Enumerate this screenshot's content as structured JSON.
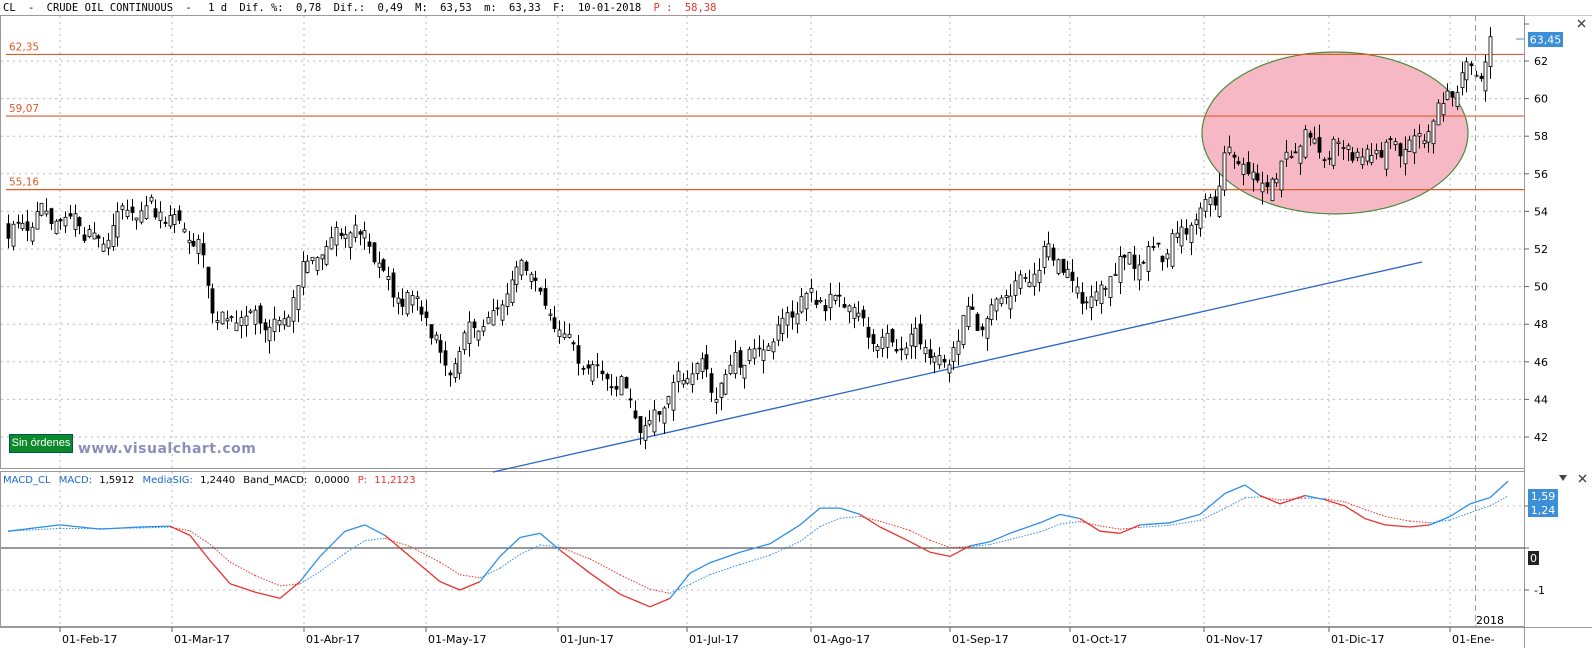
{
  "header": {
    "symbol": "CL",
    "sep": "-",
    "name": "CRUDE OIL CONTINUOUS",
    "sep2": "-",
    "period": "1 d",
    "dif_pct_label": "Dif. %:",
    "dif_pct": "0,78",
    "dif_label": "Dif.:",
    "dif": "0,49",
    "max_label": "M:",
    "max": "63,53",
    "min_label": "m:",
    "min": "63,33",
    "date_label": "F:",
    "date": "10-01-2018",
    "price_label": "P :",
    "price": "58,38"
  },
  "price_panel": {
    "last_price": "63,45",
    "yticks": [
      "62",
      "60",
      "58",
      "56",
      "54",
      "52",
      "50",
      "48",
      "46",
      "44",
      "42"
    ],
    "ytick_values": [
      62,
      60,
      58,
      56,
      54,
      52,
      50,
      48,
      46,
      44,
      42
    ],
    "hlines": [
      {
        "label": "62,35",
        "value": 62.35
      },
      {
        "label": "59,07",
        "value": 59.07
      },
      {
        "label": "55,16",
        "value": 55.16
      }
    ],
    "orders_badge": "Sin órdenes",
    "watermark": "www.visualchart.com"
  },
  "macd_panel": {
    "title": "MACD_CL",
    "macd_label": "MACD:",
    "macd_value": "1,5912",
    "signal_label": "MediaSIG:",
    "signal_value": "1,2440",
    "band_label": "Band_MACD:",
    "band_value": "0,0000",
    "p_label": "P:",
    "p_value": "11,2123",
    "yticks": [
      "1",
      "0",
      "-1"
    ],
    "badge_macd": "1,59",
    "badge_signal": "1,24",
    "badge_zero": "0"
  },
  "x_axis": {
    "labels": [
      "01-Feb-17",
      "01-Mar-17",
      "01-Abr-17",
      "01-May-17",
      "01-Jun-17",
      "01-Jul-17",
      "01-Ago-17",
      "01-Sep-17",
      "01-Oct-17",
      "01-Nov-17",
      "01-Dic-17",
      "01-Ene-"
    ],
    "year_label": "2018"
  },
  "colors": {
    "hline": "#e05a2a",
    "trendline": "#2a62c8",
    "ellipse_fill": "#f6b8c4",
    "ellipse_stroke": "#4a8a3a",
    "macd": "#2f8ee6",
    "signal": "#e8332e",
    "price_badge": "#3a8fd8"
  },
  "chart_data": {
    "type": "candlestick",
    "instrument": "CL - CRUDE OIL CONTINUOUS",
    "period": "1 d",
    "ylim": [
      41,
      64
    ],
    "closes_approx": [
      {
        "date": "01-Feb-17",
        "close": 53.5
      },
      {
        "date": "01-Mar-17",
        "close": 53.8
      },
      {
        "date": "15-Mar-17",
        "close": 48.5
      },
      {
        "date": "01-Abr-17",
        "close": 50.6
      },
      {
        "date": "12-Abr-17",
        "close": 53.4
      },
      {
        "date": "01-May-17",
        "close": 48.8
      },
      {
        "date": "05-May-17",
        "close": 46.0
      },
      {
        "date": "24-May-17",
        "close": 51.5
      },
      {
        "date": "01-Jun-17",
        "close": 48.2
      },
      {
        "date": "21-Jun-17",
        "close": 42.5
      },
      {
        "date": "01-Jul-17",
        "close": 46.0
      },
      {
        "date": "01-Ago-17",
        "close": 49.5
      },
      {
        "date": "01-Sep-17",
        "close": 47.3
      },
      {
        "date": "15-Sep-17",
        "close": 49.9
      },
      {
        "date": "01-Oct-17",
        "close": 51.8
      },
      {
        "date": "09-Oct-17",
        "close": 49.6
      },
      {
        "date": "01-Nov-17",
        "close": 54.5
      },
      {
        "date": "06-Nov-17",
        "close": 57.3
      },
      {
        "date": "01-Dic-17",
        "close": 58.2
      },
      {
        "date": "15-Dic-17",
        "close": 57.2
      },
      {
        "date": "01-Ene-18",
        "close": 60.5
      },
      {
        "date": "10-Ene-18",
        "close": 63.45
      }
    ],
    "macd_series": [
      {
        "name": "MACD",
        "last": 1.5912
      },
      {
        "name": "MediaSIG",
        "last": 1.244
      }
    ]
  }
}
